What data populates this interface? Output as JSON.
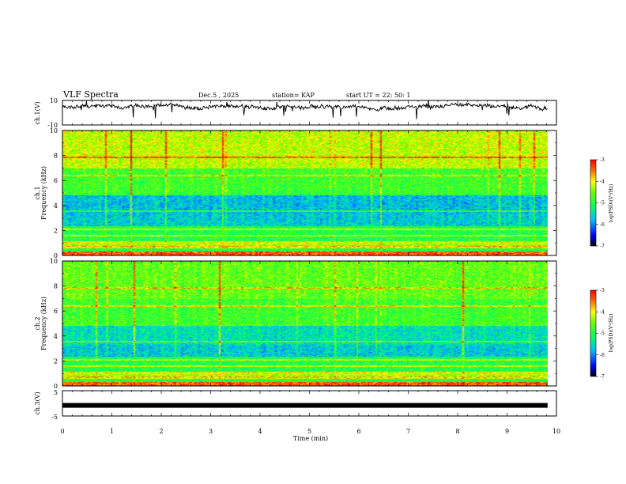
{
  "header": {
    "title": "VLF Spectra",
    "date": "Dec.5 , 2025",
    "station": "station= KAP",
    "start_ut": "start UT =   22: 50: 1"
  },
  "chart_data": {
    "type": "heatmap",
    "title": "VLF Spectra",
    "xlabel": "Time (min)",
    "xlim": [
      0,
      10
    ],
    "x_ticks": [
      "0",
      "1",
      "2",
      "3",
      "4",
      "5",
      "6",
      "7",
      "8",
      "9",
      "10"
    ],
    "panels": [
      {
        "name": "ch1-waveform",
        "type": "line",
        "ylabel": "ch.1(V)",
        "ylim": [
          -10,
          10
        ],
        "y_ticks": [
          "10",
          "-10"
        ],
        "data_end_min": 9.82,
        "baseline_v": 4.5,
        "noise_amplitude_v": 2.5
      },
      {
        "name": "ch1-spectrogram",
        "type": "heatmap",
        "ylabel_channel": "ch.1",
        "ylabel": "Frequency (kHz)",
        "ylim": [
          0,
          10
        ],
        "y_ticks": [
          "0",
          "2",
          "4",
          "6",
          "8",
          "10"
        ],
        "colorbar": {
          "label": "log(PSD)(V²/Hz)",
          "range": [
            -7,
            -3
          ],
          "ticks": [
            "-3",
            "-4",
            "-5",
            "-6",
            "-7"
          ]
        }
      },
      {
        "name": "ch2-spectrogram",
        "type": "heatmap",
        "ylabel_channel": "ch.2",
        "ylabel": "Frequency (kHz)",
        "ylim": [
          0,
          10
        ],
        "y_ticks": [
          "0",
          "2",
          "4",
          "6",
          "8",
          "10"
        ],
        "colorbar": {
          "label": "log(PSD)(V²/Hz)",
          "range": [
            -7,
            -3
          ],
          "ticks": [
            "-3",
            "-4",
            "-5",
            "-6",
            "-7"
          ]
        }
      },
      {
        "name": "ch3-waveform",
        "type": "line",
        "ylabel": "ch.3(V)",
        "ylim": [
          -5,
          5
        ],
        "y_ticks": [
          "5",
          "-5"
        ],
        "data_end_min": 9.82,
        "level_v": -0.8
      }
    ]
  }
}
